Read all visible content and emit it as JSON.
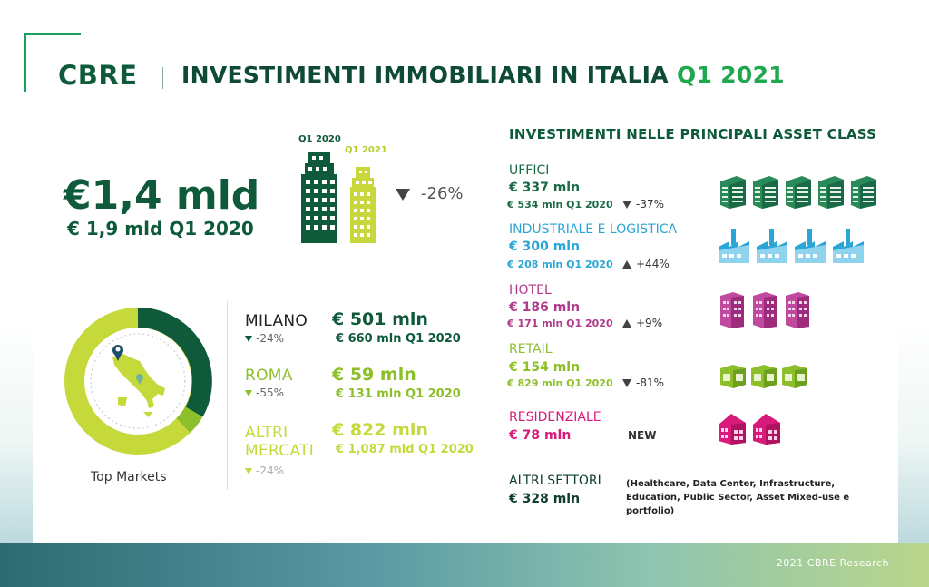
{
  "header": {
    "brand": "CBRE",
    "title_main": "INVESTIMENTI IMMOBILIARI IN ITALIA",
    "title_accent": "Q1 2021"
  },
  "summary": {
    "total": "€1,4 mld",
    "previous": "€ 1,9 mld Q1 2020",
    "change": "-26%",
    "label_2020": "Q1 2020",
    "label_2021": "Q1 2021"
  },
  "markets": {
    "caption": "Top Markets",
    "items": [
      {
        "name": "MILANO",
        "change": "-24%",
        "value": "€ 501 mln",
        "prev": "€ 660 mln Q1 2020"
      },
      {
        "name": "ROMA",
        "change": "-55%",
        "value": "€ 59 mln",
        "prev": "€ 131 mln Q1 2020"
      },
      {
        "name_line1": "ALTRI",
        "name_line2": "MERCATI",
        "change": "-24%",
        "value": "€ 822 mln",
        "prev": "€ 1,087 mld Q1 2020"
      }
    ]
  },
  "asset_classes": {
    "title": "INVESTIMENTI NELLE PRINCIPALI ASSET CLASS",
    "items": [
      {
        "name": "UFFICI",
        "value": "€ 337 mln",
        "prev": "€ 534 mln Q1 2020",
        "change": "-37%",
        "color": "#1a6b45"
      },
      {
        "name": "INDUSTRIALE E LOGISTICA",
        "value": "€ 300 mln",
        "prev": "€ 208 mln Q1 2020",
        "change": "+44%",
        "color": "#2aa6d6"
      },
      {
        "name": "HOTEL",
        "value": "€ 186 mln",
        "prev": "€ 171 mln Q1 2020",
        "change": "+9%",
        "color": "#b03a8c"
      },
      {
        "name": "RETAIL",
        "value": "€ 154 mln",
        "prev": "€ 829 mln Q1 2020",
        "change": "-81%",
        "color": "#8cbf2a"
      },
      {
        "name": "RESIDENZIALE",
        "value": "€ 78 mln",
        "badge": "NEW",
        "color": "#d81b7a"
      },
      {
        "name": "ALTRI SETTORI",
        "value": "€ 328 mln",
        "note": "(Healthcare, Data Center, Infrastructure, Education, Public Sector, Asset Mixed-use e portfolio)",
        "color": "#0e3d2e"
      }
    ]
  },
  "footer": {
    "credit": "2021 CBRE Research"
  },
  "colors": {
    "dark_green": "#0e5a3a",
    "lime": "#c5d93a",
    "accent": "#1fa84d"
  }
}
